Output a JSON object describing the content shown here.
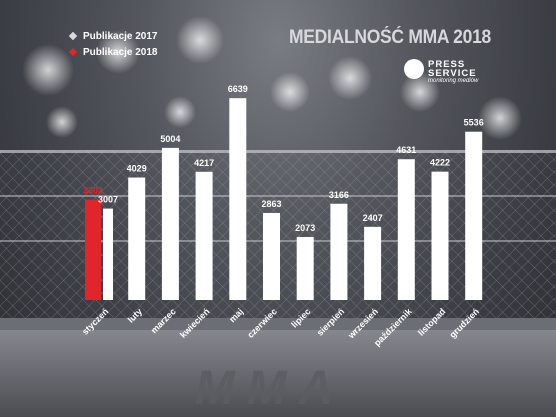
{
  "title": "MEDIALNOŚĆ MMA 2018",
  "legend": [
    {
      "label": "Publikacje 2017",
      "color": "#d9d9d9"
    },
    {
      "label": "Publikacje 2018",
      "color": "#e0262a"
    }
  ],
  "logo": {
    "line1": "PRESS",
    "line2": "SERVICE",
    "tagline": "monitoring mediów"
  },
  "watermark": "MMA",
  "chart_data": {
    "type": "bar",
    "title": "MEDIALNOŚĆ MMA 2018",
    "categories": [
      "styczeń",
      "luty",
      "marzec",
      "kwiecień",
      "maj",
      "czerwiec",
      "lipiec",
      "sierpień",
      "wrzesień",
      "październik",
      "listopad",
      "grudzień"
    ],
    "series": [
      {
        "name": "Publikacje 2018",
        "color": "#e0262a",
        "values": [
          3302,
          null,
          null,
          null,
          null,
          null,
          null,
          null,
          null,
          null,
          null,
          null
        ]
      },
      {
        "name": "Publikacje 2017",
        "color": "#ffffff",
        "values": [
          3007,
          4029,
          5004,
          4217,
          6639,
          2863,
          2073,
          3166,
          2407,
          4631,
          4222,
          5536
        ]
      }
    ],
    "grid": false,
    "legend_position": "top-left"
  }
}
